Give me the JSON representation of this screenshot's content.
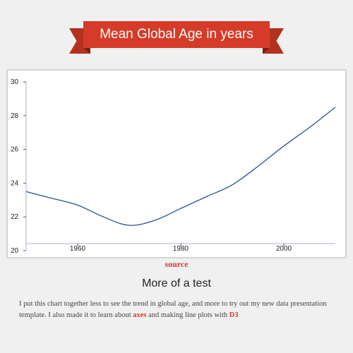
{
  "header": {
    "title": "Mean Global Age in years"
  },
  "chart_data": {
    "type": "line",
    "title": "Mean Global Age in years",
    "xlabel": "",
    "ylabel": "",
    "xlim": [
      1950,
      2010
    ],
    "ylim": [
      20,
      30
    ],
    "x_ticks": [
      1960,
      1980,
      2000
    ],
    "y_ticks": [
      20,
      22,
      24,
      26,
      28,
      30
    ],
    "grid": false,
    "series": [
      {
        "color": "#2c4ea0",
        "x": [
          1950,
          1955,
          1960,
          1965,
          1970,
          1975,
          1980,
          1985,
          1990,
          1995,
          2000,
          2005,
          2010
        ],
        "y": [
          23.5,
          23.1,
          22.7,
          22.0,
          21.5,
          21.8,
          22.5,
          23.2,
          23.9,
          25.0,
          26.2,
          27.3,
          28.5
        ]
      }
    ]
  },
  "links": {
    "source": "source"
  },
  "body": {
    "subtitle": "More of a test",
    "text_1": "I put this chart together less to see the trend in global age, and more to try out my new data presentation template. I also made it to learn about ",
    "link_axes": "axes",
    "text_2": " and making line plots with ",
    "link_d3": "D3"
  },
  "colors": {
    "accent": "#d63a28",
    "line": "#2c4ea0",
    "background": "#f0f0f0"
  }
}
